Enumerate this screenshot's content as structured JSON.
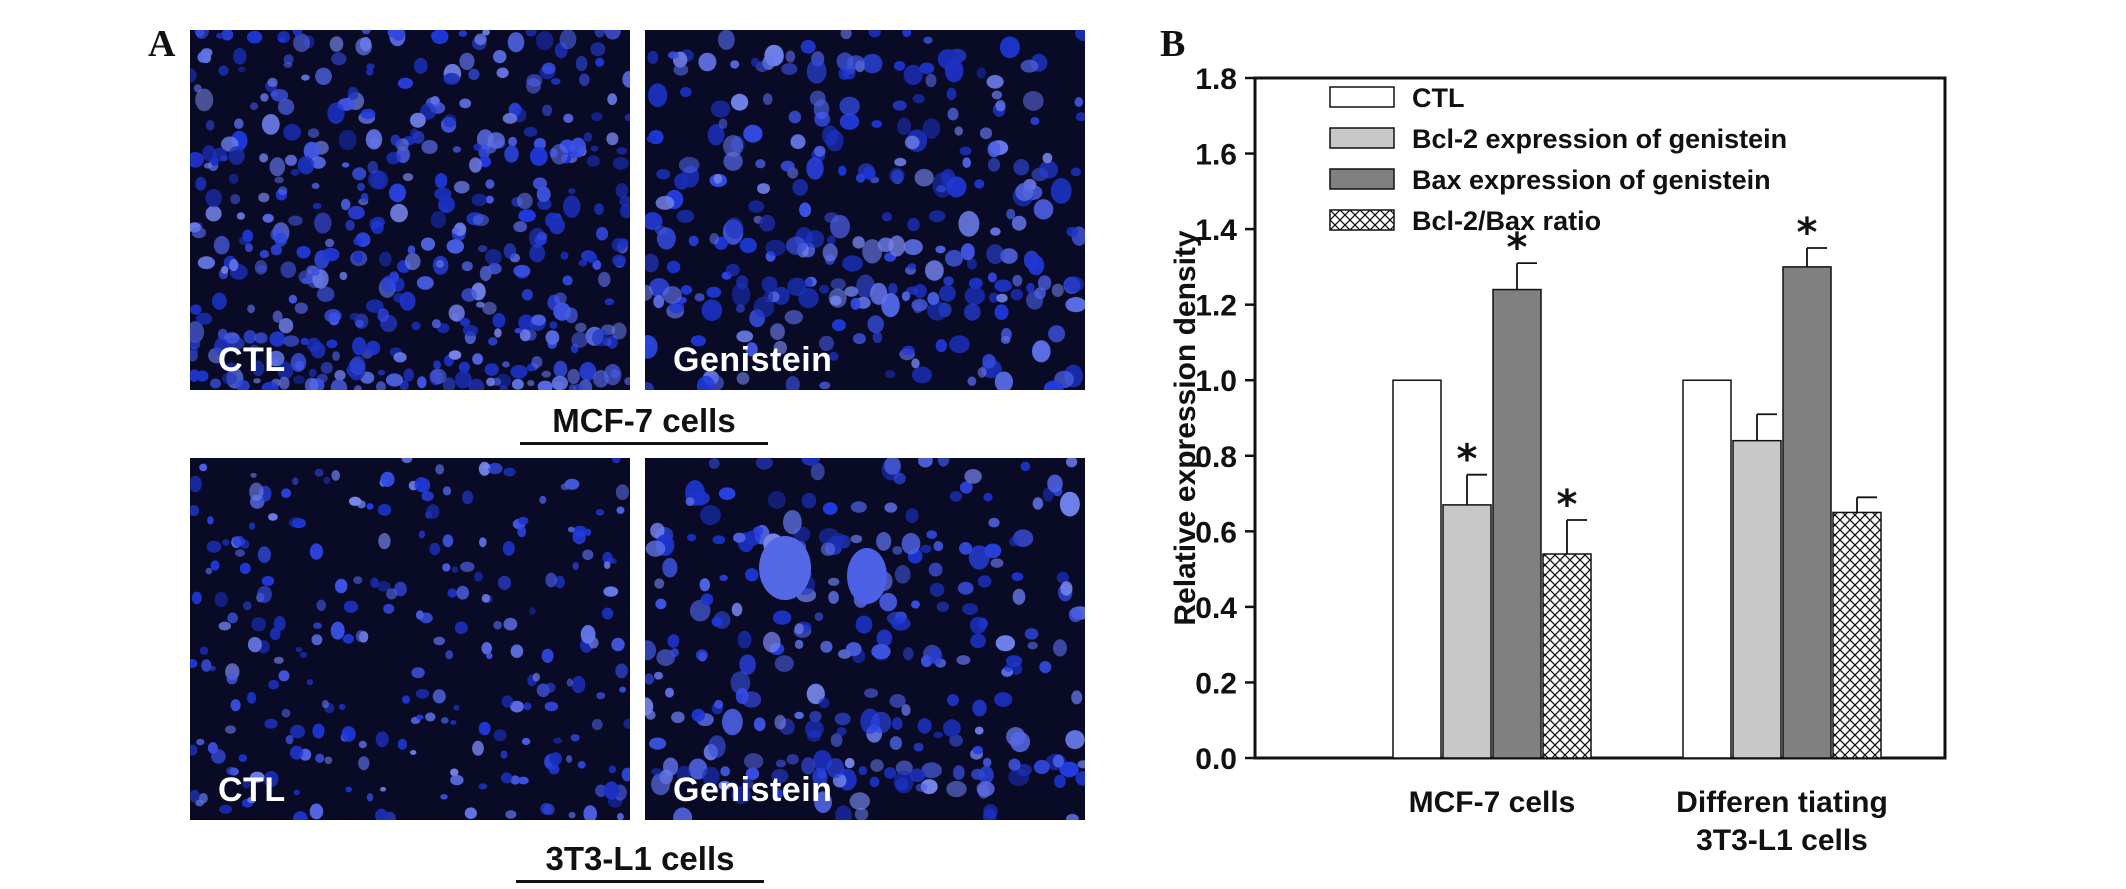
{
  "panel_a": {
    "letter": "A",
    "images": [
      {
        "label": "CTL",
        "seed": 11,
        "density": 0.62,
        "blob": 6
      },
      {
        "label": "Genistein",
        "seed": 23,
        "density": 0.4,
        "blob": 7
      },
      {
        "label": "CTL",
        "seed": 37,
        "density": 0.34,
        "blob": 5
      },
      {
        "label": "Genistein",
        "seed": 53,
        "density": 0.36,
        "blob": 7
      }
    ],
    "row_titles": [
      "MCF-7 cells",
      "3T3-L1 cells"
    ]
  },
  "panel_b": {
    "letter": "B"
  },
  "chart_data": {
    "type": "bar",
    "title": "",
    "ylabel": "Relative expression density",
    "xlabel": "",
    "ylim": [
      0,
      1.8
    ],
    "yticks": [
      "0.0",
      "0.2",
      "0.4",
      "0.6",
      "0.8",
      "1.0",
      "1.2",
      "1.4",
      "1.6",
      "1.8"
    ],
    "categories": [
      "MCF-7 cells",
      "Differentiating 3T3-L1 cells"
    ],
    "category_lines": [
      [
        "MCF-7 cells"
      ],
      [
        "Differen tiating",
        "3T3-L1 cells"
      ]
    ],
    "legend_position": "top-left",
    "series": [
      {
        "name": "CTL",
        "values": [
          1.0,
          1.0
        ],
        "errors": [
          0,
          0
        ],
        "significant": [
          false,
          false
        ],
        "fill": "#ffffff",
        "pattern": "none"
      },
      {
        "name": "Bcl-2 expression of genistein",
        "values": [
          0.67,
          0.84
        ],
        "errors": [
          0.08,
          0.07
        ],
        "significant": [
          true,
          false
        ],
        "fill": "#c8c8c8",
        "pattern": "none"
      },
      {
        "name": "Bax expression of genistein",
        "values": [
          1.24,
          1.3
        ],
        "errors": [
          0.07,
          0.05
        ],
        "significant": [
          true,
          true
        ],
        "fill": "#808080",
        "pattern": "none"
      },
      {
        "name": "Bcl-2/Bax ratio",
        "values": [
          0.54,
          0.65
        ],
        "errors": [
          0.09,
          0.04
        ],
        "significant": [
          true,
          false
        ],
        "fill": "#ffffff",
        "pattern": "crosshatch"
      }
    ],
    "significance_marker": "*"
  }
}
